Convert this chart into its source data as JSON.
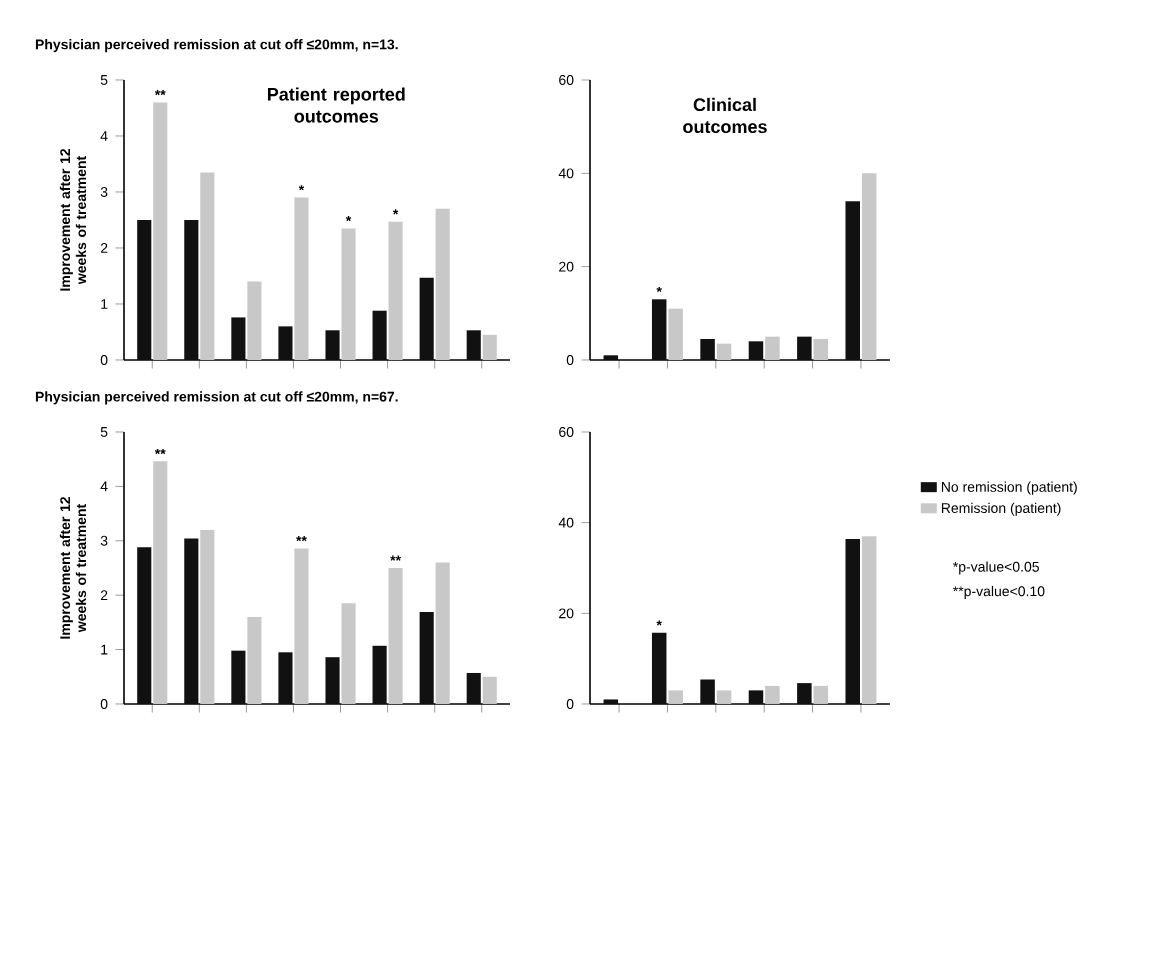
{
  "chart_data": [
    {
      "type": "bar",
      "title": "Physician perceived remission at cut off ≤20mm, n=13.",
      "subtitle": "Patient reported outcomes",
      "ylabel": "Improvement after 12 weeks of treatment",
      "categories": [
        null,
        null,
        null,
        null,
        null,
        null,
        null,
        null
      ],
      "ylim": [
        0,
        5
      ],
      "yticks": [
        0,
        1,
        2,
        3,
        4,
        5
      ],
      "series": [
        {
          "color": "#111111",
          "values": [
            2.5,
            2.5,
            0.76,
            0.6,
            0.53,
            0.88,
            1.47,
            0.53
          ]
        },
        {
          "color": "#c8c8c8",
          "values": [
            4.6,
            3.35,
            1.4,
            2.9,
            2.35,
            2.47,
            2.7,
            0.45
          ],
          "value_labels": [
            "**",
            null,
            null,
            "*",
            "*",
            "*",
            null,
            null
          ]
        }
      ]
    },
    {
      "type": "bar",
      "title": "Clinical outcomes",
      "categories": [
        null,
        null,
        null,
        null,
        null,
        null
      ],
      "ylim": [
        0,
        60
      ],
      "yticks": [
        0,
        20,
        40,
        60
      ],
      "series": [
        {
          "color": "#111111",
          "values": [
            1,
            13,
            4.5,
            4,
            5,
            34
          ],
          "value_labels": [
            null,
            "*",
            null,
            null,
            null,
            null
          ]
        },
        {
          "color": "#c8c8c8",
          "values": [
            null,
            11,
            3.5,
            5,
            4.5,
            40
          ]
        }
      ]
    },
    {
      "type": "bar",
      "title": "Physician perceived remission at cut off ≤20mm, n=67.",
      "ylabel": "Improvement after 12 weeks of treatment",
      "categories": [
        null,
        null,
        null,
        null,
        null,
        null,
        null,
        null
      ],
      "ylim": [
        0,
        5
      ],
      "yticks": [
        0,
        1,
        2,
        3,
        4,
        5
      ],
      "series": [
        {
          "color": "#111111",
          "values": [
            2.88,
            3.04,
            0.98,
            0.95,
            0.86,
            1.07,
            1.69,
            0.57
          ]
        },
        {
          "color": "#c8c8c8",
          "values": [
            4.46,
            3.2,
            1.6,
            2.86,
            1.85,
            2.5,
            2.6,
            0.5
          ],
          "value_labels": [
            "**",
            null,
            null,
            "**",
            null,
            "**",
            null,
            null
          ]
        }
      ]
    },
    {
      "type": "bar",
      "categories": [
        null,
        null,
        null,
        null,
        null,
        null
      ],
      "ylim": [
        0,
        60
      ],
      "yticks": [
        0,
        20,
        40,
        60
      ],
      "legend": "right",
      "annotations": [
        "*p-value<0.05",
        "**p-value<0.10"
      ],
      "series": [
        {
          "name": "No remission (patient)",
          "color": "#111111",
          "values": [
            1,
            15.7,
            5.4,
            3,
            4.6,
            36.4
          ],
          "value_labels": [
            null,
            "*",
            null,
            null,
            null,
            null
          ]
        },
        {
          "name": "Remission (patient)",
          "color": "#c8c8c8",
          "values": [
            null,
            3,
            3,
            4,
            4,
            37
          ]
        }
      ]
    }
  ]
}
